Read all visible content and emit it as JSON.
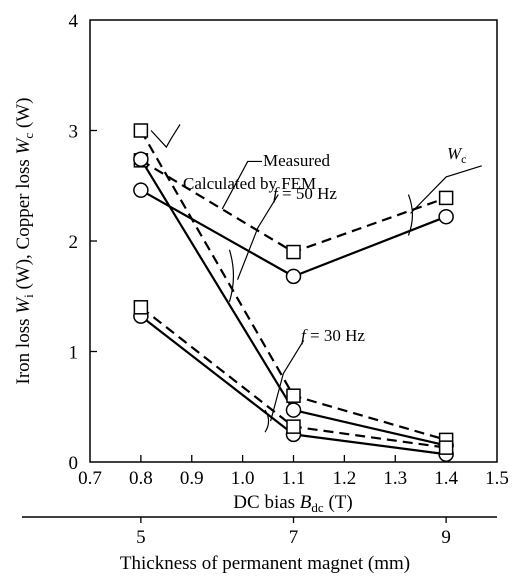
{
  "chart_data": {
    "type": "line",
    "xlabel_parts": [
      "DC bias ",
      "B",
      "dc",
      " (T)"
    ],
    "x2label": "Thickness of permanent magnet (mm)",
    "ylabel_parts": [
      "Iron loss ",
      "W",
      "i",
      " (W), Copper loss ",
      "W",
      "c",
      " (W)"
    ],
    "xlim": [
      0.7,
      1.5
    ],
    "ylim": [
      0,
      4
    ],
    "x_ticks": [
      "0.7",
      "0.8",
      "0.9",
      "1.0",
      "1.1",
      "1.2",
      "1.3",
      "1.4",
      "1.5"
    ],
    "y_ticks": [
      "0",
      "1",
      "2",
      "3",
      "4"
    ],
    "x2_ticks": [
      {
        "label": "5",
        "x": 0.8
      },
      {
        "label": "7",
        "x": 1.1
      },
      {
        "label": "9",
        "x": 1.4
      }
    ],
    "x": [
      0.8,
      1.1,
      1.4
    ],
    "series": [
      {
        "group": "Wc",
        "source": "Measured",
        "marker": "circle",
        "line": "solid",
        "values": [
          2.46,
          1.68,
          2.22
        ]
      },
      {
        "group": "Wc",
        "source": "Calculated by FEM",
        "marker": "square",
        "line": "dashed",
        "values": [
          2.73,
          1.9,
          2.39
        ]
      },
      {
        "group": "f = 50 Hz",
        "source": "Measured",
        "marker": "circle",
        "line": "solid",
        "values": [
          2.74,
          0.47,
          0.15
        ]
      },
      {
        "group": "f = 50 Hz",
        "source": "Calculated by FEM",
        "marker": "square",
        "line": "dashed",
        "values": [
          3.0,
          0.6,
          0.2
        ]
      },
      {
        "group": "f = 30 Hz",
        "source": "Measured",
        "marker": "circle",
        "line": "solid",
        "values": [
          1.32,
          0.25,
          0.07
        ]
      },
      {
        "group": "f = 30 Hz",
        "source": "Calculated by FEM",
        "marker": "square",
        "line": "dashed",
        "values": [
          1.4,
          0.32,
          0.13
        ]
      }
    ],
    "annotations": {
      "fem": "Calculated by FEM",
      "measured": "Measured",
      "wc": [
        "W",
        "c"
      ],
      "f50": [
        "f",
        " = 50 Hz"
      ],
      "f30": [
        "f",
        " = 30 Hz"
      ]
    },
    "grid": false,
    "legend": "none"
  }
}
